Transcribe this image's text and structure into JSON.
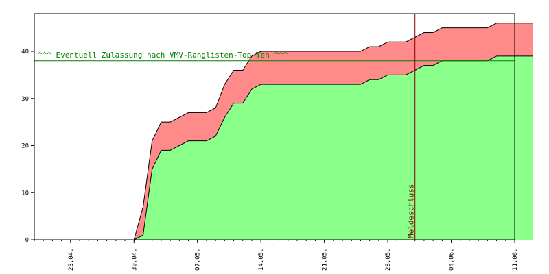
{
  "chart_data": {
    "type": "area",
    "title": "",
    "xlabel": "",
    "ylabel": "",
    "ylim": [
      0,
      48
    ],
    "grid": false,
    "x_start_date": "2013-04-19",
    "xtick_labels": [
      "23.04.",
      "30.04.",
      "07.05.",
      "14.05.",
      "21.05.",
      "28.05.",
      "04.06.",
      "11.06."
    ],
    "xtick_dates": [
      "2013-04-23",
      "2013-04-30",
      "2013-05-07",
      "2013-05-14",
      "2013-05-21",
      "2013-05-28",
      "2013-06-04",
      "2013-06-11"
    ],
    "yticks": [
      0,
      10,
      20,
      30,
      40
    ],
    "series": [
      {
        "name": "",
        "color": "#ff8a8a",
        "points": [
          [
            "2013-04-30",
            0
          ],
          [
            "2013-05-01",
            7
          ],
          [
            "2013-05-02",
            21
          ],
          [
            "2013-05-03",
            25
          ],
          [
            "2013-05-04",
            25
          ],
          [
            "2013-05-05",
            26
          ],
          [
            "2013-05-06",
            27
          ],
          [
            "2013-05-07",
            27
          ],
          [
            "2013-05-08",
            27
          ],
          [
            "2013-05-09",
            28
          ],
          [
            "2013-05-10",
            33
          ],
          [
            "2013-05-11",
            36
          ],
          [
            "2013-05-12",
            36
          ],
          [
            "2013-05-13",
            39
          ],
          [
            "2013-05-14",
            40
          ],
          [
            "2013-05-25",
            40
          ],
          [
            "2013-05-26",
            41
          ],
          [
            "2013-05-27",
            41
          ],
          [
            "2013-05-28",
            42
          ],
          [
            "2013-05-30",
            42
          ],
          [
            "2013-05-31",
            43
          ],
          [
            "2013-06-01",
            44
          ],
          [
            "2013-06-02",
            44
          ],
          [
            "2013-06-03",
            45
          ],
          [
            "2013-06-08",
            45
          ],
          [
            "2013-06-09",
            46
          ],
          [
            "2013-06-13",
            46
          ]
        ]
      },
      {
        "name": "",
        "color": "#8aff8a",
        "points": [
          [
            "2013-04-30",
            0
          ],
          [
            "2013-05-01",
            1
          ],
          [
            "2013-05-02",
            15
          ],
          [
            "2013-05-03",
            19
          ],
          [
            "2013-05-04",
            19
          ],
          [
            "2013-05-05",
            20
          ],
          [
            "2013-05-06",
            21
          ],
          [
            "2013-05-07",
            21
          ],
          [
            "2013-05-08",
            21
          ],
          [
            "2013-05-09",
            22
          ],
          [
            "2013-05-10",
            26
          ],
          [
            "2013-05-11",
            29
          ],
          [
            "2013-05-12",
            29
          ],
          [
            "2013-05-13",
            32
          ],
          [
            "2013-05-14",
            33
          ],
          [
            "2013-05-25",
            33
          ],
          [
            "2013-05-26",
            34
          ],
          [
            "2013-05-27",
            34
          ],
          [
            "2013-05-28",
            35
          ],
          [
            "2013-05-30",
            35
          ],
          [
            "2013-05-31",
            36
          ],
          [
            "2013-06-01",
            37
          ],
          [
            "2013-06-02",
            37
          ],
          [
            "2013-06-03",
            38
          ],
          [
            "2013-06-08",
            38
          ],
          [
            "2013-06-09",
            39
          ],
          [
            "2013-06-13",
            39
          ]
        ]
      }
    ],
    "hline": {
      "y": 38,
      "label": "^^^ Eventuell Zulassung nach VMV-Ranglisten-Top-Ten ^^^",
      "color": "#008000"
    },
    "vline": {
      "x": "2013-05-31",
      "label": "Meldeschluss",
      "color": "#800000"
    }
  }
}
